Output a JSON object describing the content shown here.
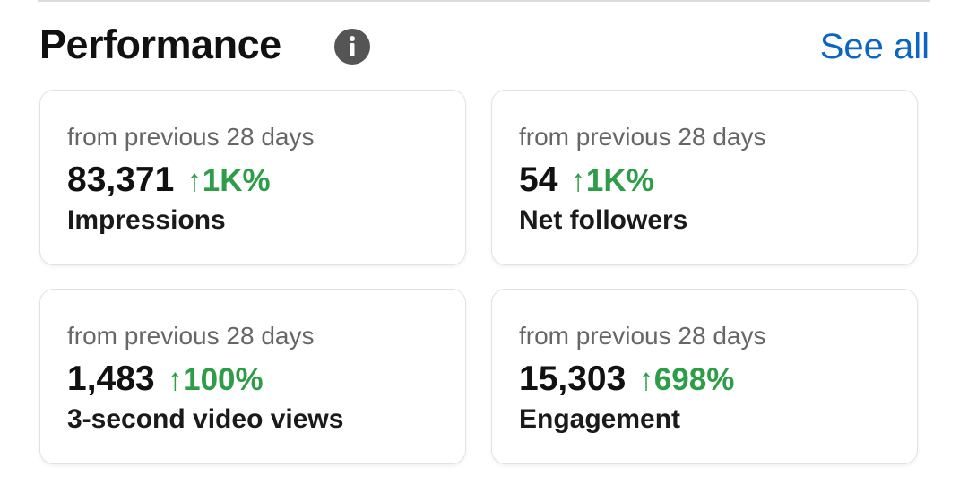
{
  "header": {
    "title": "Performance",
    "link": "See all"
  },
  "cards": [
    {
      "period": "from previous 28 days",
      "value": "83,371",
      "change": "↑1K%",
      "label": "Impressions"
    },
    {
      "period": "from previous 28 days",
      "value": "54",
      "change": "↑1K%",
      "label": "Net followers"
    },
    {
      "period": "from previous 28 days",
      "value": "1,483",
      "change": "↑100%",
      "label": "3-second video views"
    },
    {
      "period": "from previous 28 days",
      "value": "15,303",
      "change": "↑698%",
      "label": "Engagement"
    }
  ]
}
